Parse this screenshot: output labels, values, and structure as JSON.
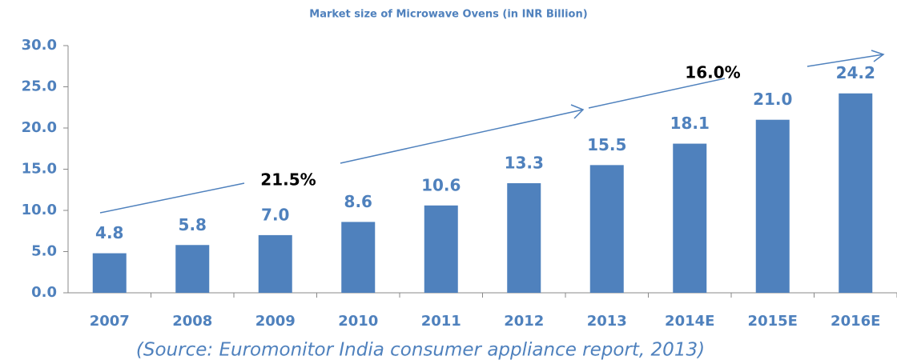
{
  "chart_data": {
    "type": "bar",
    "title": "Market size of Microwave Ovens (in INR Billion)",
    "categories": [
      "2007",
      "2008",
      "2009",
      "2010",
      "2011",
      "2012",
      "2013",
      "2014E",
      "2015E",
      "2016E"
    ],
    "values": [
      4.8,
      5.8,
      7.0,
      8.6,
      10.6,
      13.3,
      15.5,
      18.1,
      21.0,
      24.2
    ],
    "value_labels": [
      "4.8",
      "5.8",
      "7.0",
      "8.6",
      "10.6",
      "13.3",
      "15.5",
      "18.1",
      "21.0",
      "24.2"
    ],
    "color": "#4f81bd",
    "ylim": [
      0,
      30
    ],
    "yticks": [
      {
        "value": 0,
        "label": "0.0"
      },
      {
        "value": 5,
        "label": "5.0"
      },
      {
        "value": 10,
        "label": "10.0"
      },
      {
        "value": 15,
        "label": "15.0"
      },
      {
        "value": 20,
        "label": "20.0"
      },
      {
        "value": 25,
        "label": "25.0"
      },
      {
        "value": 30,
        "label": "30.0"
      }
    ],
    "annotations": [
      "21.5%",
      "16.0%"
    ],
    "source": "(Source: Euromonitor India consumer appliance report, 2013)"
  }
}
